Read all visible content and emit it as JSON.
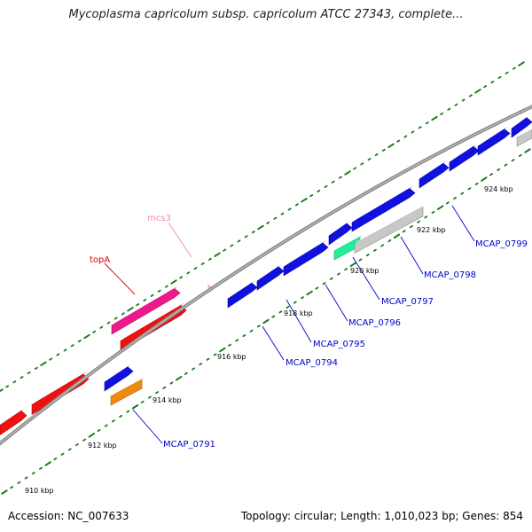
{
  "title": "Mycoplasma capricolum subsp. capricolum ATCC 27343, complete...",
  "footer": {
    "accession": "Accession: NC_007633",
    "info": "Topology: circular; Length: 1,010,023 bp; Genes: 854"
  },
  "colors": {
    "backbone": "#8a8a8a",
    "tick": "#1a7a1a",
    "blue_gene": "#1010e0",
    "red_gene": "#ee1111",
    "pink_gene": "#ee1a8c",
    "orange_gene": "#ee8a11",
    "green_gene": "#22ee99",
    "gray_gene": "#c8c8c8",
    "blue_label": "#0000cc",
    "red_label": "#dd0000",
    "pink_label": "#ee88bb"
  },
  "tick_labels": [
    "910 kbp",
    "912 kbp",
    "914 kbp",
    "916 kbp",
    "918 kbp",
    "920 kbp",
    "922 kbp",
    "924 kbp"
  ],
  "gene_labels": [
    {
      "text": "topA",
      "color": "red"
    },
    {
      "text": "mcs3",
      "color": "pink"
    },
    {
      "text": "MCAP_0791",
      "color": "blue"
    },
    {
      "text": "MCAP_0794",
      "color": "blue"
    },
    {
      "text": "MCAP_0795",
      "color": "blue"
    },
    {
      "text": "MCAP_0796",
      "color": "blue"
    },
    {
      "text": "MCAP_0797",
      "color": "blue"
    },
    {
      "text": "MCAP_0798",
      "color": "blue"
    },
    {
      "text": "MCAP_0799",
      "color": "blue"
    }
  ]
}
